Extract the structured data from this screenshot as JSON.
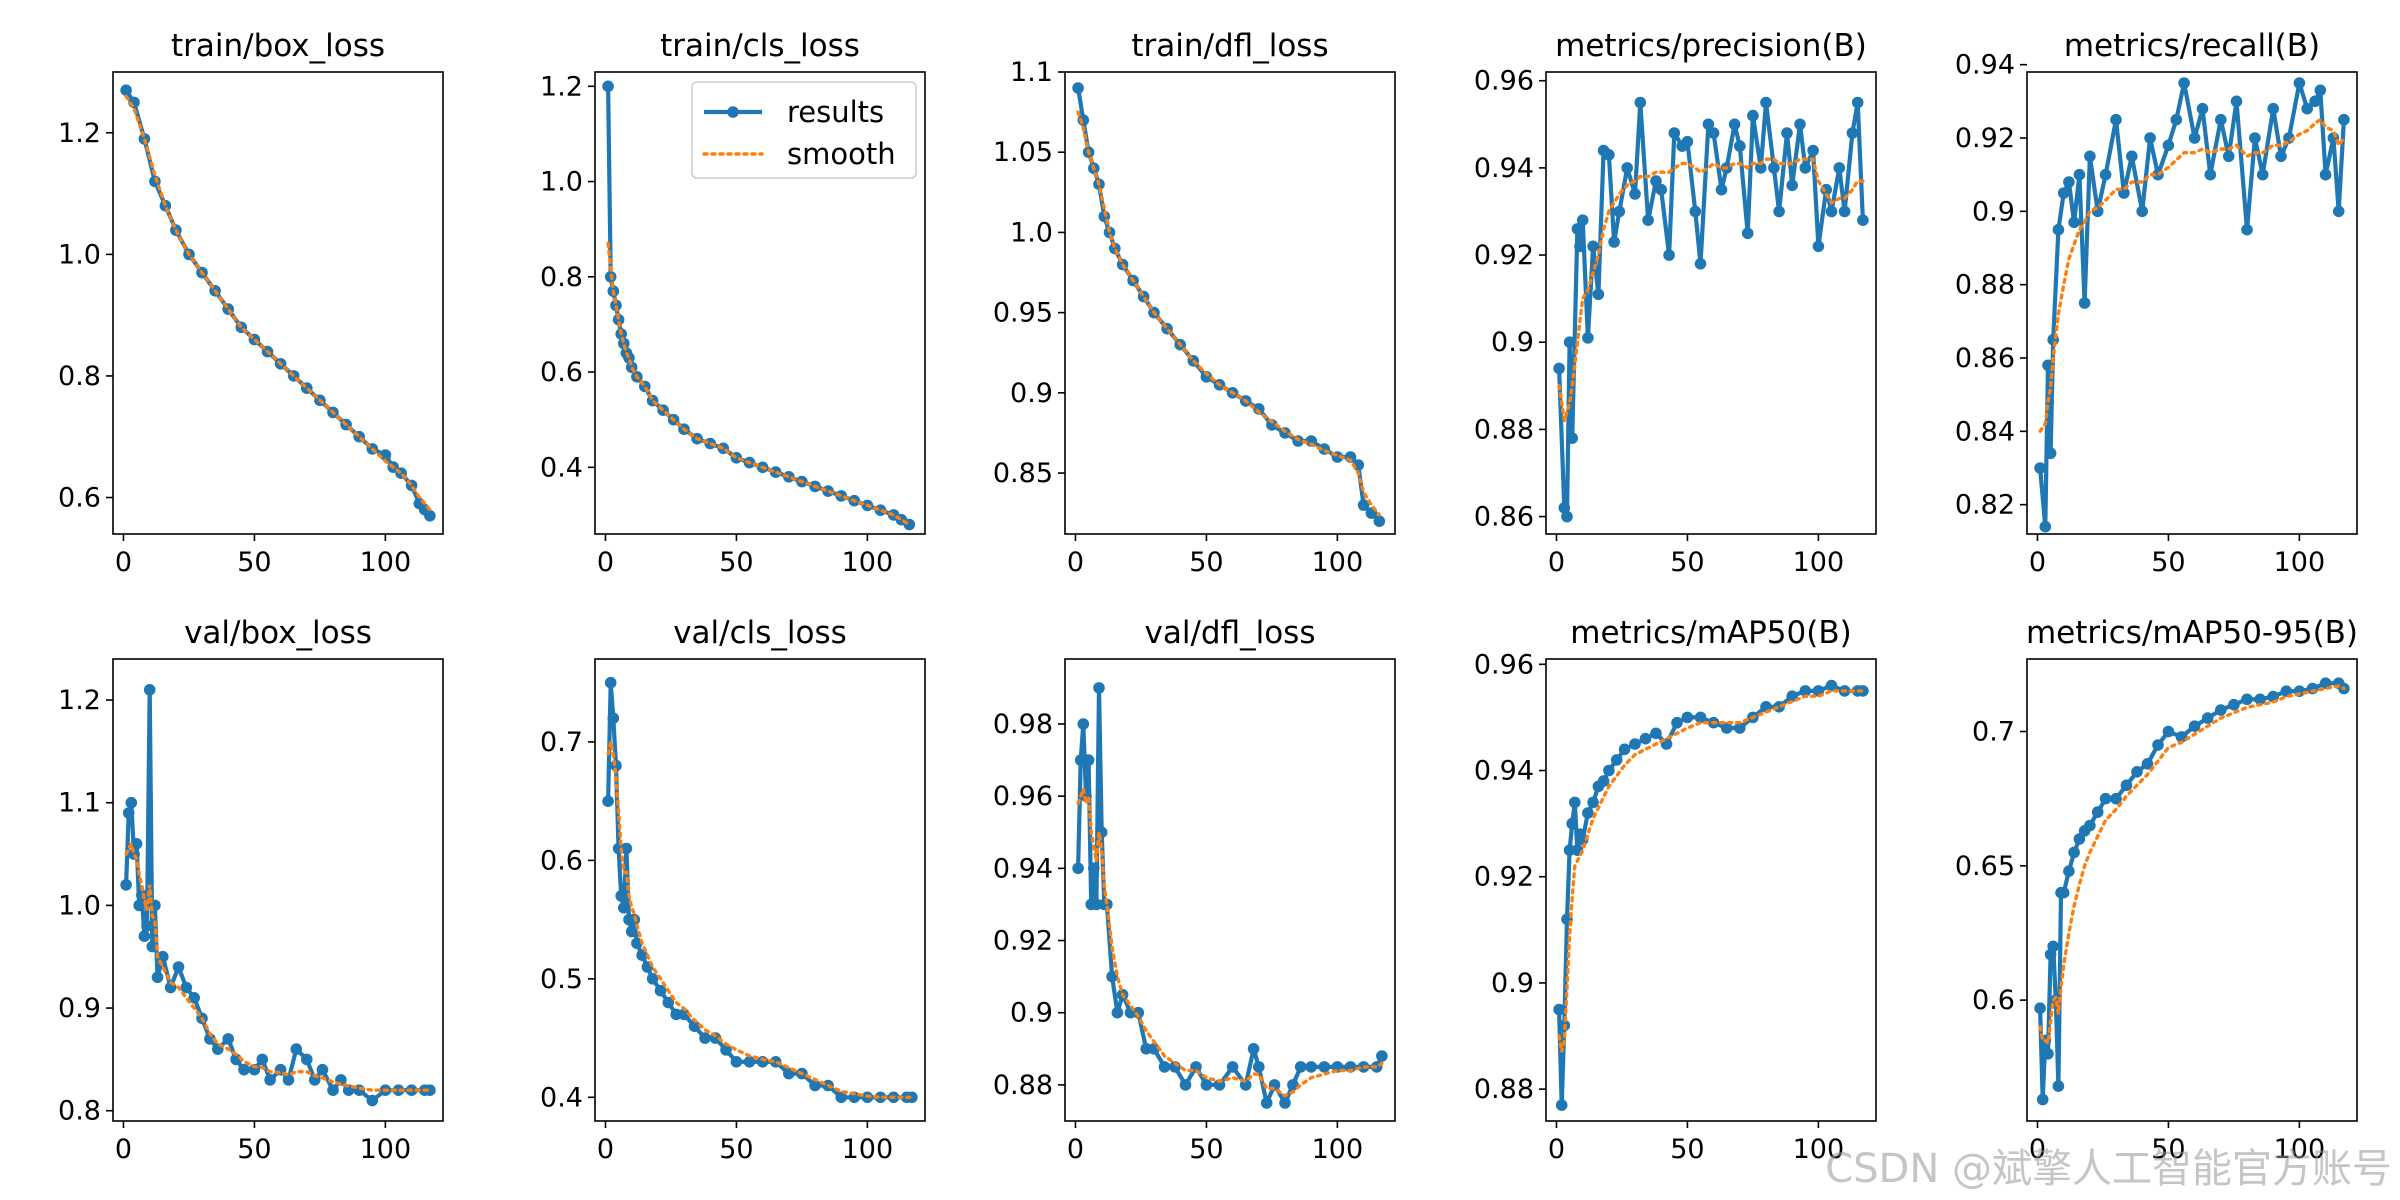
{
  "figure": {
    "watermark": "CSDN @斌擎人工智能官方账号"
  },
  "colors": {
    "results": "#1f77b4",
    "smooth": "#ff7f0e",
    "axis": "#000000"
  },
  "legend": {
    "results_label": "results",
    "smooth_label": "smooth",
    "placement": "top-right",
    "panel": 1
  },
  "chart_data": [
    {
      "type": "line",
      "title": "train/box_loss",
      "xlim": [
        -4,
        122
      ],
      "ylim": [
        0.54,
        1.3
      ],
      "xticks": [
        0,
        50,
        100
      ],
      "yticks": [
        0.6,
        0.8,
        1.0,
        1.2
      ],
      "x": [
        1,
        4,
        8,
        12,
        16,
        20,
        25,
        30,
        35,
        40,
        45,
        50,
        55,
        60,
        65,
        70,
        75,
        80,
        85,
        90,
        95,
        100,
        103,
        106,
        110,
        113,
        115,
        117
      ],
      "values": [
        1.27,
        1.25,
        1.19,
        1.12,
        1.08,
        1.04,
        1.0,
        0.97,
        0.94,
        0.91,
        0.88,
        0.86,
        0.84,
        0.82,
        0.8,
        0.78,
        0.76,
        0.74,
        0.72,
        0.7,
        0.68,
        0.67,
        0.65,
        0.64,
        0.62,
        0.59,
        0.58,
        0.57
      ],
      "smooth": [
        1.26,
        1.24,
        1.19,
        1.13,
        1.08,
        1.04,
        1.0,
        0.97,
        0.94,
        0.91,
        0.88,
        0.86,
        0.84,
        0.82,
        0.8,
        0.78,
        0.76,
        0.74,
        0.72,
        0.7,
        0.68,
        0.66,
        0.65,
        0.64,
        0.62,
        0.6,
        0.59,
        0.58
      ]
    },
    {
      "type": "line",
      "title": "train/cls_loss",
      "xlim": [
        -4,
        122
      ],
      "ylim": [
        0.26,
        1.23
      ],
      "xticks": [
        0,
        50,
        100
      ],
      "yticks": [
        0.4,
        0.6,
        0.8,
        1.0,
        1.2
      ],
      "x": [
        1,
        2,
        3,
        4,
        5,
        6,
        7,
        8,
        9,
        10,
        12,
        15,
        18,
        22,
        26,
        30,
        35,
        40,
        45,
        50,
        55,
        60,
        65,
        70,
        75,
        80,
        85,
        90,
        95,
        100,
        105,
        110,
        113,
        116
      ],
      "values": [
        1.2,
        0.8,
        0.77,
        0.74,
        0.71,
        0.68,
        0.66,
        0.64,
        0.63,
        0.61,
        0.59,
        0.57,
        0.54,
        0.52,
        0.5,
        0.48,
        0.46,
        0.45,
        0.44,
        0.42,
        0.41,
        0.4,
        0.39,
        0.38,
        0.37,
        0.36,
        0.35,
        0.34,
        0.33,
        0.32,
        0.31,
        0.3,
        0.29,
        0.28
      ],
      "smooth": [
        0.87,
        0.82,
        0.77,
        0.74,
        0.71,
        0.68,
        0.66,
        0.64,
        0.63,
        0.61,
        0.59,
        0.57,
        0.54,
        0.52,
        0.5,
        0.48,
        0.46,
        0.45,
        0.44,
        0.42,
        0.41,
        0.4,
        0.39,
        0.38,
        0.37,
        0.36,
        0.35,
        0.34,
        0.33,
        0.32,
        0.31,
        0.3,
        0.29,
        0.28
      ]
    },
    {
      "type": "line",
      "title": "train/dfl_loss",
      "xlim": [
        -4,
        122
      ],
      "ylim": [
        0.812,
        1.1
      ],
      "xticks": [
        0,
        50,
        100
      ],
      "yticks": [
        0.85,
        0.9,
        0.95,
        1.0,
        1.05,
        1.1
      ],
      "x": [
        1,
        3,
        5,
        7,
        9,
        11,
        13,
        15,
        18,
        22,
        26,
        30,
        35,
        40,
        45,
        50,
        55,
        60,
        65,
        70,
        75,
        80,
        85,
        90,
        95,
        100,
        105,
        108,
        110,
        113,
        116
      ],
      "values": [
        1.09,
        1.07,
        1.05,
        1.04,
        1.03,
        1.01,
        1.0,
        0.99,
        0.98,
        0.97,
        0.96,
        0.95,
        0.94,
        0.93,
        0.92,
        0.91,
        0.905,
        0.9,
        0.895,
        0.89,
        0.88,
        0.875,
        0.87,
        0.87,
        0.865,
        0.86,
        0.86,
        0.855,
        0.83,
        0.825,
        0.82
      ],
      "smooth": [
        1.075,
        1.065,
        1.05,
        1.04,
        1.03,
        1.015,
        1.0,
        0.99,
        0.98,
        0.97,
        0.96,
        0.95,
        0.94,
        0.93,
        0.92,
        0.912,
        0.905,
        0.9,
        0.895,
        0.888,
        0.882,
        0.876,
        0.871,
        0.868,
        0.864,
        0.861,
        0.858,
        0.85,
        0.838,
        0.83,
        0.824
      ]
    },
    {
      "type": "line",
      "title": "metrics/precision(B)",
      "xlim": [
        -4,
        122
      ],
      "ylim": [
        0.856,
        0.962
      ],
      "xticks": [
        0,
        50,
        100
      ],
      "yticks": [
        0.86,
        0.88,
        0.9,
        0.92,
        0.94,
        0.96
      ],
      "x": [
        1,
        3,
        4,
        5,
        6,
        8,
        9,
        10,
        12,
        14,
        16,
        18,
        20,
        22,
        24,
        27,
        30,
        32,
        35,
        38,
        40,
        43,
        45,
        48,
        50,
        53,
        55,
        58,
        60,
        63,
        65,
        68,
        70,
        73,
        75,
        78,
        80,
        83,
        85,
        88,
        90,
        93,
        95,
        98,
        100,
        103,
        105,
        108,
        110,
        113,
        115,
        117
      ],
      "values": [
        0.894,
        0.862,
        0.86,
        0.9,
        0.878,
        0.926,
        0.922,
        0.928,
        0.901,
        0.922,
        0.911,
        0.944,
        0.943,
        0.923,
        0.93,
        0.94,
        0.934,
        0.955,
        0.928,
        0.937,
        0.935,
        0.92,
        0.948,
        0.945,
        0.946,
        0.93,
        0.918,
        0.95,
        0.948,
        0.935,
        0.94,
        0.95,
        0.945,
        0.925,
        0.952,
        0.94,
        0.955,
        0.94,
        0.93,
        0.948,
        0.936,
        0.95,
        0.94,
        0.944,
        0.922,
        0.935,
        0.93,
        0.94,
        0.93,
        0.948,
        0.955,
        0.928
      ],
      "smooth": [
        0.89,
        0.882,
        0.884,
        0.886,
        0.89,
        0.9,
        0.905,
        0.91,
        0.912,
        0.916,
        0.92,
        0.926,
        0.93,
        0.932,
        0.934,
        0.936,
        0.937,
        0.938,
        0.938,
        0.939,
        0.939,
        0.939,
        0.94,
        0.941,
        0.941,
        0.94,
        0.939,
        0.94,
        0.941,
        0.94,
        0.94,
        0.941,
        0.941,
        0.94,
        0.941,
        0.941,
        0.942,
        0.942,
        0.941,
        0.941,
        0.941,
        0.942,
        0.942,
        0.942,
        0.937,
        0.934,
        0.932,
        0.933,
        0.933,
        0.935,
        0.937,
        0.937
      ]
    },
    {
      "type": "line",
      "title": "metrics/recall(B)",
      "xlim": [
        -4,
        122
      ],
      "ylim": [
        0.812,
        0.938
      ],
      "xticks": [
        0,
        50,
        100
      ],
      "yticks": [
        0.82,
        0.84,
        0.86,
        0.88,
        0.9,
        0.92,
        0.94
      ],
      "x": [
        1,
        3,
        4,
        5,
        6,
        8,
        10,
        12,
        14,
        16,
        18,
        20,
        23,
        26,
        30,
        33,
        36,
        40,
        43,
        46,
        50,
        53,
        56,
        60,
        63,
        66,
        70,
        73,
        76,
        80,
        83,
        86,
        90,
        93,
        96,
        100,
        103,
        106,
        108,
        110,
        113,
        115,
        117
      ],
      "values": [
        0.83,
        0.814,
        0.858,
        0.834,
        0.865,
        0.895,
        0.905,
        0.908,
        0.897,
        0.91,
        0.875,
        0.915,
        0.9,
        0.91,
        0.925,
        0.905,
        0.915,
        0.9,
        0.92,
        0.91,
        0.918,
        0.925,
        0.935,
        0.92,
        0.928,
        0.91,
        0.925,
        0.915,
        0.93,
        0.895,
        0.92,
        0.91,
        0.928,
        0.915,
        0.92,
        0.935,
        0.928,
        0.93,
        0.933,
        0.91,
        0.92,
        0.9,
        0.925
      ],
      "smooth": [
        0.84,
        0.842,
        0.848,
        0.852,
        0.86,
        0.872,
        0.88,
        0.887,
        0.891,
        0.895,
        0.897,
        0.9,
        0.901,
        0.903,
        0.906,
        0.906,
        0.908,
        0.908,
        0.91,
        0.91,
        0.912,
        0.914,
        0.916,
        0.916,
        0.917,
        0.916,
        0.917,
        0.917,
        0.918,
        0.915,
        0.916,
        0.916,
        0.918,
        0.918,
        0.919,
        0.921,
        0.922,
        0.924,
        0.925,
        0.923,
        0.922,
        0.918,
        0.92
      ]
    },
    {
      "type": "line",
      "title": "val/box_loss",
      "xlim": [
        -4,
        122
      ],
      "ylim": [
        0.79,
        1.24
      ],
      "xticks": [
        0,
        50,
        100
      ],
      "yticks": [
        0.8,
        0.9,
        1.0,
        1.1,
        1.2
      ],
      "x": [
        1,
        2,
        3,
        4,
        5,
        6,
        7,
        8,
        9,
        10,
        11,
        12,
        13,
        15,
        18,
        21,
        24,
        27,
        30,
        33,
        36,
        40,
        43,
        46,
        50,
        53,
        56,
        60,
        63,
        66,
        70,
        73,
        76,
        80,
        83,
        86,
        90,
        95,
        100,
        105,
        110,
        115,
        117
      ],
      "values": [
        1.02,
        1.09,
        1.1,
        1.05,
        1.06,
        1.0,
        1.01,
        0.97,
        0.98,
        1.21,
        0.96,
        1.0,
        0.93,
        0.95,
        0.92,
        0.94,
        0.92,
        0.91,
        0.89,
        0.87,
        0.86,
        0.87,
        0.85,
        0.84,
        0.84,
        0.85,
        0.83,
        0.84,
        0.83,
        0.86,
        0.85,
        0.83,
        0.84,
        0.82,
        0.83,
        0.82,
        0.82,
        0.81,
        0.82,
        0.82,
        0.82,
        0.82,
        0.82
      ],
      "smooth": [
        1.05,
        1.055,
        1.06,
        1.05,
        1.045,
        1.03,
        1.02,
        1.005,
        0.995,
        1.02,
        0.99,
        0.985,
        0.95,
        0.94,
        0.925,
        0.92,
        0.91,
        0.9,
        0.89,
        0.875,
        0.865,
        0.86,
        0.855,
        0.848,
        0.843,
        0.842,
        0.838,
        0.837,
        0.835,
        0.838,
        0.838,
        0.834,
        0.832,
        0.828,
        0.826,
        0.824,
        0.822,
        0.82,
        0.82,
        0.82,
        0.82,
        0.82,
        0.82
      ]
    },
    {
      "type": "line",
      "title": "val/cls_loss",
      "xlim": [
        -4,
        122
      ],
      "ylim": [
        0.38,
        0.77
      ],
      "xticks": [
        0,
        50,
        100
      ],
      "yticks": [
        0.4,
        0.5,
        0.6,
        0.7
      ],
      "x": [
        1,
        2,
        3,
        4,
        5,
        6,
        7,
        8,
        9,
        10,
        11,
        12,
        14,
        16,
        18,
        21,
        24,
        27,
        30,
        34,
        38,
        42,
        46,
        50,
        55,
        60,
        65,
        70,
        75,
        80,
        85,
        90,
        95,
        100,
        105,
        110,
        115,
        117
      ],
      "values": [
        0.65,
        0.75,
        0.72,
        0.68,
        0.61,
        0.57,
        0.56,
        0.61,
        0.55,
        0.54,
        0.55,
        0.53,
        0.52,
        0.51,
        0.5,
        0.49,
        0.48,
        0.47,
        0.47,
        0.46,
        0.45,
        0.45,
        0.44,
        0.43,
        0.43,
        0.43,
        0.43,
        0.42,
        0.42,
        0.41,
        0.41,
        0.4,
        0.4,
        0.4,
        0.4,
        0.4,
        0.4,
        0.4
      ],
      "smooth": [
        0.69,
        0.7,
        0.69,
        0.67,
        0.64,
        0.61,
        0.59,
        0.59,
        0.57,
        0.56,
        0.555,
        0.545,
        0.53,
        0.52,
        0.51,
        0.5,
        0.49,
        0.48,
        0.475,
        0.465,
        0.457,
        0.452,
        0.445,
        0.44,
        0.435,
        0.432,
        0.43,
        0.425,
        0.42,
        0.415,
        0.41,
        0.405,
        0.403,
        0.401,
        0.4,
        0.4,
        0.4,
        0.4
      ]
    },
    {
      "type": "line",
      "title": "val/dfl_loss",
      "xlim": [
        -4,
        122
      ],
      "ylim": [
        0.87,
        0.998
      ],
      "xticks": [
        0,
        50,
        100
      ],
      "yticks": [
        0.88,
        0.9,
        0.92,
        0.94,
        0.96,
        0.98
      ],
      "x": [
        1,
        2,
        3,
        4,
        5,
        6,
        7,
        8,
        9,
        10,
        11,
        12,
        14,
        16,
        18,
        21,
        24,
        27,
        30,
        34,
        38,
        42,
        46,
        50,
        55,
        60,
        65,
        68,
        70,
        73,
        76,
        80,
        83,
        86,
        90,
        95,
        100,
        105,
        110,
        115,
        117
      ],
      "values": [
        0.94,
        0.97,
        0.98,
        0.96,
        0.97,
        0.93,
        0.94,
        0.93,
        0.99,
        0.95,
        0.93,
        0.93,
        0.91,
        0.9,
        0.905,
        0.9,
        0.9,
        0.89,
        0.89,
        0.885,
        0.885,
        0.88,
        0.885,
        0.88,
        0.88,
        0.885,
        0.88,
        0.89,
        0.885,
        0.875,
        0.88,
        0.875,
        0.88,
        0.885,
        0.885,
        0.885,
        0.885,
        0.885,
        0.885,
        0.885,
        0.888
      ],
      "smooth": [
        0.958,
        0.96,
        0.962,
        0.958,
        0.96,
        0.95,
        0.946,
        0.942,
        0.95,
        0.945,
        0.935,
        0.93,
        0.918,
        0.91,
        0.905,
        0.902,
        0.899,
        0.895,
        0.892,
        0.888,
        0.886,
        0.884,
        0.884,
        0.882,
        0.881,
        0.882,
        0.881,
        0.883,
        0.883,
        0.879,
        0.879,
        0.877,
        0.878,
        0.88,
        0.882,
        0.883,
        0.884,
        0.884,
        0.885,
        0.885,
        0.886
      ]
    },
    {
      "type": "line",
      "title": "metrics/mAP50(B)",
      "xlim": [
        -4,
        122
      ],
      "ylim": [
        0.874,
        0.961
      ],
      "xticks": [
        0,
        50,
        100
      ],
      "yticks": [
        0.88,
        0.9,
        0.92,
        0.94,
        0.96
      ],
      "x": [
        1,
        2,
        3,
        4,
        5,
        6,
        7,
        8,
        9,
        10,
        12,
        14,
        16,
        18,
        20,
        23,
        26,
        30,
        34,
        38,
        42,
        46,
        50,
        55,
        60,
        65,
        70,
        75,
        80,
        85,
        90,
        95,
        100,
        105,
        110,
        115,
        117
      ],
      "values": [
        0.895,
        0.877,
        0.892,
        0.912,
        0.925,
        0.93,
        0.934,
        0.925,
        0.928,
        0.927,
        0.932,
        0.934,
        0.937,
        0.938,
        0.94,
        0.942,
        0.944,
        0.945,
        0.946,
        0.947,
        0.945,
        0.949,
        0.95,
        0.95,
        0.949,
        0.948,
        0.948,
        0.95,
        0.952,
        0.952,
        0.954,
        0.955,
        0.955,
        0.956,
        0.955,
        0.955,
        0.955
      ],
      "smooth": [
        0.89,
        0.887,
        0.889,
        0.899,
        0.909,
        0.916,
        0.922,
        0.923,
        0.924,
        0.925,
        0.928,
        0.931,
        0.933,
        0.935,
        0.937,
        0.939,
        0.941,
        0.943,
        0.944,
        0.945,
        0.946,
        0.947,
        0.948,
        0.949,
        0.949,
        0.949,
        0.949,
        0.95,
        0.951,
        0.952,
        0.953,
        0.954,
        0.954,
        0.955,
        0.955,
        0.955,
        0.955
      ]
    },
    {
      "type": "line",
      "title": "metrics/mAP50-95(B)",
      "xlim": [
        -4,
        122
      ],
      "ylim": [
        0.555,
        0.727
      ],
      "xticks": [
        0,
        50,
        100
      ],
      "yticks": [
        0.6,
        0.65,
        0.7
      ],
      "x": [
        1,
        2,
        3,
        4,
        5,
        6,
        7,
        8,
        9,
        10,
        12,
        14,
        16,
        18,
        20,
        23,
        26,
        30,
        34,
        38,
        42,
        46,
        50,
        55,
        60,
        65,
        70,
        75,
        80,
        85,
        90,
        95,
        100,
        105,
        110,
        115,
        117
      ],
      "values": [
        0.597,
        0.563,
        0.585,
        0.58,
        0.617,
        0.62,
        0.6,
        0.568,
        0.64,
        0.64,
        0.648,
        0.655,
        0.66,
        0.663,
        0.665,
        0.67,
        0.675,
        0.675,
        0.68,
        0.685,
        0.688,
        0.695,
        0.7,
        0.698,
        0.702,
        0.705,
        0.708,
        0.71,
        0.712,
        0.712,
        0.713,
        0.715,
        0.715,
        0.716,
        0.718,
        0.718,
        0.716
      ],
      "smooth": [
        0.59,
        0.585,
        0.585,
        0.584,
        0.592,
        0.6,
        0.601,
        0.595,
        0.605,
        0.613,
        0.625,
        0.635,
        0.643,
        0.65,
        0.655,
        0.661,
        0.667,
        0.671,
        0.676,
        0.68,
        0.684,
        0.689,
        0.694,
        0.696,
        0.699,
        0.702,
        0.705,
        0.707,
        0.709,
        0.71,
        0.711,
        0.713,
        0.714,
        0.715,
        0.716,
        0.717,
        0.716
      ]
    }
  ]
}
